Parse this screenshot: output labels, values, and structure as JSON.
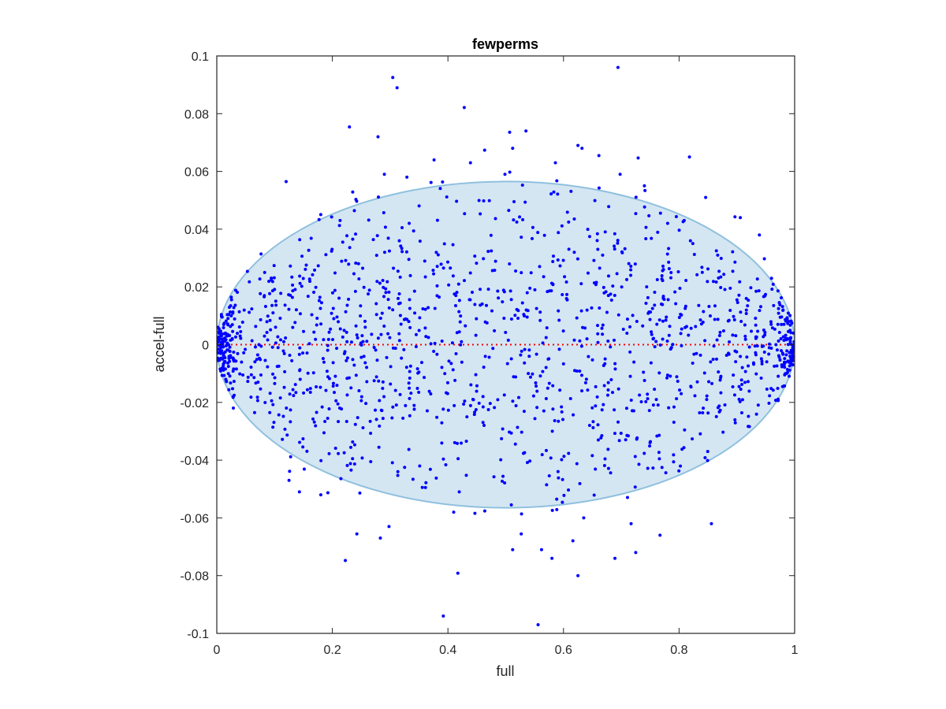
{
  "chart_data": {
    "type": "scatter",
    "title": "fewperms",
    "xlabel": "full",
    "ylabel": "accel-full",
    "xlim": [
      0,
      1
    ],
    "ylim": [
      -0.1,
      0.1
    ],
    "xticks": [
      0,
      0.2,
      0.4,
      0.6,
      0.8,
      1
    ],
    "xtick_labels": [
      "0",
      "0.2",
      "0.4",
      "0.6",
      "0.8",
      "1"
    ],
    "yticks": [
      -0.1,
      -0.08,
      -0.06,
      -0.04,
      -0.02,
      0,
      0.02,
      0.04,
      0.06,
      0.08,
      0.1
    ],
    "ytick_labels": [
      "-0.1",
      "-0.08",
      "-0.06",
      "-0.04",
      "-0.02",
      "0",
      "0.02",
      "0.04",
      "0.06",
      "0.08",
      "0.1"
    ],
    "grid": false,
    "colors": {
      "points": "#0000ff",
      "ellipse_fill": "#d4e6f2",
      "ellipse_stroke": "#8fc0de",
      "reference_line": "#ff0000",
      "axes": "#262626"
    },
    "reference_line": {
      "y": 0,
      "style": "dotted"
    },
    "ellipse": {
      "center": [
        0.5,
        0
      ],
      "semi_x": 0.5,
      "semi_y": 0.0565
    },
    "point_count_hint": 1500,
    "series": [
      {
        "points": [
          [
            0.312,
            0.089
          ],
          [
            0.392,
            -0.094
          ],
          [
            0.556,
            -0.097
          ],
          [
            0.279,
            0.072
          ],
          [
            0.535,
            0.074
          ],
          [
            0.625,
            0.069
          ],
          [
            0.632,
            0.068
          ],
          [
            0.818,
            0.065
          ],
          [
            0.512,
            0.068
          ],
          [
            0.625,
            -0.08
          ],
          [
            0.298,
            -0.063
          ],
          [
            0.562,
            -0.071
          ],
          [
            0.512,
            -0.071
          ],
          [
            0.58,
            -0.074
          ],
          [
            0.689,
            -0.074
          ],
          [
            0.725,
            -0.072
          ],
          [
            0.767,
            -0.066
          ],
          [
            0.586,
            0.063
          ],
          [
            0.439,
            0.063
          ],
          [
            0.376,
            0.064
          ],
          [
            0.29,
            0.059
          ],
          [
            0.329,
            0.058
          ],
          [
            0.698,
            0.059
          ],
          [
            0.74,
            0.055
          ],
          [
            0.846,
            0.051
          ],
          [
            0.906,
            0.044
          ],
          [
            0.939,
            0.038
          ],
          [
            0.96,
            0.023
          ],
          [
            0.143,
            -0.051
          ],
          [
            0.18,
            -0.052
          ],
          [
            0.125,
            -0.047
          ],
          [
            0.41,
            -0.058
          ],
          [
            0.635,
            -0.06
          ],
          [
            0.717,
            -0.062
          ],
          [
            0.856,
            -0.062
          ],
          [
            0.004,
            0.004
          ],
          [
            0.003,
            0.001
          ],
          [
            0.006,
            -0.002
          ],
          [
            0.002,
            0.006
          ],
          [
            0.008,
            0.003
          ],
          [
            0.01,
            -0.005
          ],
          [
            0.012,
            0.007
          ],
          [
            0.005,
            0.002
          ],
          [
            0.007,
            -0.001
          ],
          [
            0.015,
            0.004
          ],
          [
            0.995,
            0.0
          ],
          [
            0.998,
            0.004
          ],
          [
            0.992,
            -0.004
          ],
          [
            0.99,
            0.008
          ],
          [
            0.997,
            -0.007
          ],
          [
            0.985,
            -0.01
          ],
          [
            0.98,
            0.012
          ],
          [
            0.988,
            0.002
          ],
          [
            0.994,
            -0.002
          ],
          [
            0.999,
            0.001
          ]
        ]
      }
    ]
  }
}
